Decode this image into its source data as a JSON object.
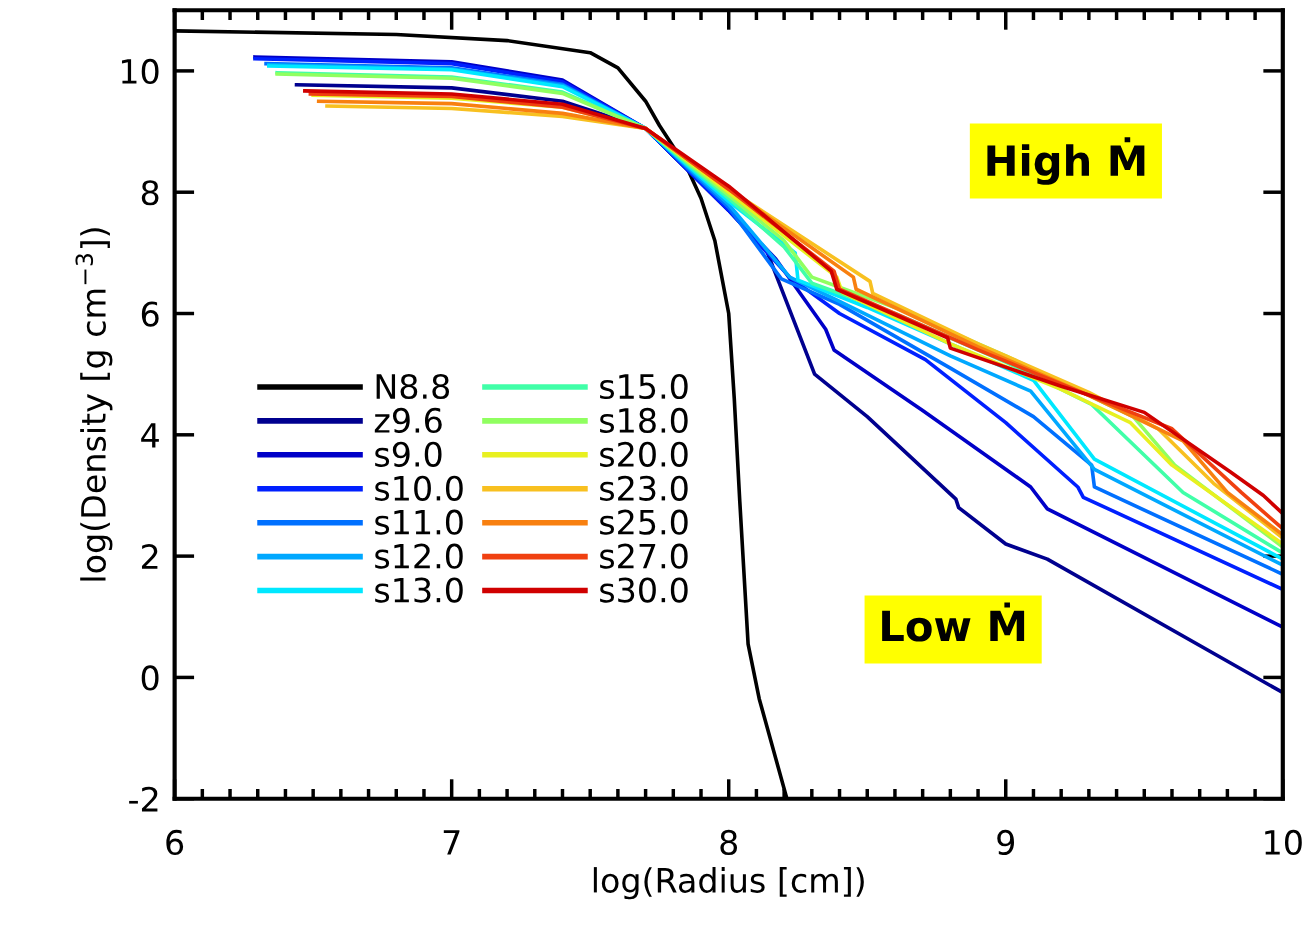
{
  "chart_data": {
    "type": "line",
    "xlabel": "log(Radius [cm])",
    "ylabel": "log(Density [g cm$^{−3}$])",
    "xlim": [
      6,
      10
    ],
    "ylim": [
      -2,
      11
    ],
    "xticks": [
      6,
      7,
      8,
      9,
      10
    ],
    "yticks": [
      -2,
      0,
      2,
      4,
      6,
      8,
      10
    ],
    "grid": false,
    "legend": "left",
    "marker": "none",
    "line_style": "solid",
    "annotations": [
      "High Ṁ",
      "Low Ṁ"
    ],
    "series": [
      {
        "name": "N8.8",
        "color": "#000000",
        "x": [
          6.0,
          6.8,
          7.2,
          7.5,
          7.6,
          7.7,
          7.75,
          7.85,
          7.9,
          7.95,
          8.0,
          8.02,
          8.04,
          8.07,
          8.11,
          8.21
        ],
        "values": [
          10.66,
          10.6,
          10.5,
          10.3,
          10.05,
          9.5,
          9.1,
          8.4,
          7.9,
          7.2,
          6.0,
          4.6,
          2.9,
          0.55,
          -0.35,
          -2.0
        ]
      },
      {
        "name": "z9.6",
        "color": "#00008f",
        "x": [
          6.44,
          7.0,
          7.4,
          7.7,
          8.0,
          8.14,
          8.31,
          8.5,
          8.82,
          8.83,
          9.0,
          9.15,
          10.0
        ],
        "values": [
          9.77,
          9.72,
          9.5,
          9.05,
          7.7,
          7.0,
          5.0,
          4.3,
          2.94,
          2.8,
          2.2,
          1.95,
          -0.25
        ]
      },
      {
        "name": "s9.0",
        "color": "#0000c8",
        "x": [
          6.29,
          7.0,
          7.4,
          7.7,
          8.0,
          8.17,
          8.35,
          8.38,
          8.7,
          9.09,
          9.15,
          10.0
        ],
        "values": [
          10.23,
          10.15,
          9.85,
          9.05,
          7.7,
          6.9,
          5.74,
          5.4,
          4.4,
          3.14,
          2.78,
          0.83
        ]
      },
      {
        "name": "s10.0",
        "color": "#0020ff",
        "x": [
          6.29,
          7.0,
          7.4,
          7.7,
          8.0,
          8.22,
          8.4,
          8.71,
          9.0,
          9.26,
          9.28,
          10.0
        ],
        "values": [
          10.2,
          10.12,
          9.82,
          9.05,
          7.7,
          6.6,
          6.0,
          5.24,
          4.2,
          3.14,
          2.97,
          1.45
        ]
      },
      {
        "name": "s11.0",
        "color": "#0070ff",
        "x": [
          6.33,
          7.0,
          7.4,
          7.7,
          8.0,
          8.19,
          8.4,
          8.8,
          9.1,
          9.31,
          9.32,
          10.0
        ],
        "values": [
          10.12,
          10.05,
          9.78,
          9.05,
          7.75,
          6.57,
          6.15,
          5.1,
          4.3,
          3.5,
          3.14,
          1.7
        ]
      },
      {
        "name": "s12.0",
        "color": "#00a8ff",
        "x": [
          6.34,
          7.0,
          7.4,
          7.7,
          8.0,
          8.22,
          8.4,
          8.8,
          9.09,
          9.32,
          10.0
        ],
        "values": [
          10.1,
          10.03,
          9.76,
          9.05,
          7.8,
          6.6,
          6.2,
          5.3,
          4.72,
          3.43,
          1.85
        ]
      },
      {
        "name": "s13.0",
        "color": "#00e8ff",
        "x": [
          6.34,
          7.0,
          7.4,
          7.7,
          8.0,
          8.24,
          8.25,
          8.5,
          8.8,
          9.1,
          9.32,
          10.0
        ],
        "values": [
          10.08,
          10.02,
          9.74,
          9.05,
          7.85,
          7.0,
          6.55,
          6.1,
          5.5,
          4.9,
          3.6,
          1.95
        ]
      },
      {
        "name": "s15.0",
        "color": "#40ffa8",
        "x": [
          6.37,
          7.0,
          7.4,
          7.7,
          8.0,
          8.2,
          8.3,
          8.6,
          9.0,
          9.31,
          9.64,
          10.0
        ],
        "values": [
          9.97,
          9.9,
          9.65,
          9.05,
          7.9,
          7.1,
          6.5,
          6.0,
          5.2,
          4.5,
          3.05,
          2.05
        ]
      },
      {
        "name": "s18.0",
        "color": "#90ff60",
        "x": [
          6.37,
          7.0,
          7.4,
          7.7,
          8.0,
          8.2,
          8.3,
          8.6,
          9.0,
          9.46,
          9.61,
          10.0
        ],
        "values": [
          9.95,
          9.88,
          9.63,
          9.05,
          7.95,
          7.2,
          6.6,
          6.1,
          5.3,
          4.3,
          3.5,
          2.15
        ]
      },
      {
        "name": "s20.0",
        "color": "#e8f020",
        "x": [
          6.5,
          7.0,
          7.4,
          7.7,
          8.0,
          8.39,
          8.41,
          8.8,
          9.2,
          9.45,
          9.6,
          10.0
        ],
        "values": [
          9.6,
          9.55,
          9.4,
          9.05,
          8.0,
          6.6,
          6.35,
          5.5,
          4.75,
          4.2,
          3.5,
          2.2
        ]
      },
      {
        "name": "s23.0",
        "color": "#f8c020",
        "x": [
          6.55,
          7.0,
          7.4,
          7.7,
          8.0,
          8.51,
          8.52,
          8.9,
          9.3,
          9.55,
          9.75,
          10.0
        ],
        "values": [
          9.42,
          9.38,
          9.25,
          9.05,
          8.05,
          6.53,
          6.33,
          5.5,
          4.7,
          4.1,
          3.2,
          2.3
        ]
      },
      {
        "name": "s25.0",
        "color": "#f88010",
        "x": [
          6.52,
          7.0,
          7.4,
          7.7,
          8.0,
          8.45,
          8.46,
          8.9,
          9.3,
          9.64,
          9.8,
          10.0
        ],
        "values": [
          9.5,
          9.46,
          9.3,
          9.05,
          8.05,
          6.6,
          6.4,
          5.45,
          4.65,
          3.9,
          3.05,
          2.35
        ]
      },
      {
        "name": "s27.0",
        "color": "#f04010",
        "x": [
          6.49,
          7.0,
          7.4,
          7.7,
          8.0,
          8.38,
          8.4,
          8.9,
          9.3,
          9.6,
          9.85,
          10.0
        ],
        "values": [
          9.62,
          9.58,
          9.4,
          9.05,
          8.05,
          6.7,
          6.4,
          5.4,
          4.65,
          4.1,
          3.05,
          2.45
        ]
      },
      {
        "name": "s30.0",
        "color": "#d00000",
        "x": [
          6.47,
          7.0,
          7.4,
          7.7,
          8.0,
          8.37,
          8.39,
          8.79,
          8.8,
          9.2,
          9.5,
          9.81,
          9.93,
          10.0
        ],
        "values": [
          9.67,
          9.62,
          9.45,
          9.05,
          8.1,
          6.7,
          6.4,
          5.6,
          5.43,
          4.8,
          4.37,
          3.39,
          3.0,
          2.7
        ]
      }
    ]
  }
}
